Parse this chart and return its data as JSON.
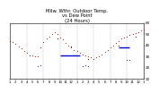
{
  "title": "Milw. Wthr. Outdoor Temp.\nvs Dew Point\n(24 Hours)",
  "title_fontsize": 3.8,
  "title_color": "#000000",
  "bg_color": "#ffffff",
  "xlim": [
    0,
    24
  ],
  "ylim": [
    10,
    60
  ],
  "ytick_fontsize": 3.0,
  "xtick_fontsize": 2.8,
  "grid_color": "#999999",
  "grid_style": "--",
  "temp_color": "#cc0000",
  "dew_color": "#0000cc",
  "black_color": "#000000",
  "temp_data": [
    [
      0.0,
      44
    ],
    [
      0.5,
      43
    ],
    [
      1.0,
      41
    ],
    [
      1.5,
      39
    ],
    [
      2.0,
      37
    ],
    [
      2.5,
      35
    ],
    [
      3.0,
      33
    ],
    [
      4.0,
      31
    ],
    [
      4.5,
      30
    ],
    [
      5.0,
      30
    ],
    [
      5.5,
      38
    ],
    [
      6.0,
      43
    ],
    [
      6.5,
      46
    ],
    [
      7.0,
      48
    ],
    [
      7.5,
      50
    ],
    [
      8.0,
      52
    ],
    [
      8.5,
      50
    ],
    [
      9.0,
      47
    ],
    [
      9.5,
      45
    ],
    [
      10.0,
      42
    ],
    [
      10.5,
      40
    ],
    [
      11.0,
      38
    ],
    [
      11.5,
      36
    ],
    [
      12.0,
      35
    ],
    [
      12.5,
      33
    ],
    [
      13.0,
      32
    ],
    [
      13.5,
      31
    ],
    [
      14.0,
      30
    ],
    [
      14.5,
      29
    ],
    [
      15.0,
      28
    ],
    [
      15.5,
      29
    ],
    [
      16.0,
      30
    ],
    [
      16.5,
      32
    ],
    [
      17.0,
      34
    ],
    [
      17.5,
      36
    ],
    [
      18.0,
      38
    ],
    [
      18.5,
      40
    ],
    [
      19.0,
      42
    ],
    [
      19.5,
      44
    ],
    [
      20.0,
      46
    ],
    [
      20.5,
      47
    ],
    [
      21.0,
      48
    ],
    [
      21.5,
      49
    ],
    [
      22.0,
      50
    ],
    [
      22.5,
      51
    ],
    [
      23.0,
      52
    ],
    [
      23.5,
      53
    ],
    [
      24.0,
      54
    ]
  ],
  "black_data": [
    [
      3.5,
      31
    ],
    [
      8.5,
      46
    ],
    [
      11.0,
      39
    ],
    [
      14.0,
      28
    ],
    [
      19.5,
      40
    ],
    [
      22.5,
      48
    ]
  ],
  "dew_dots": [
    [
      5.0,
      21
    ],
    [
      5.5,
      22
    ],
    [
      13.0,
      21
    ],
    [
      13.5,
      22
    ],
    [
      14.0,
      21
    ],
    [
      21.0,
      27
    ],
    [
      21.5,
      27
    ]
  ],
  "dew_line_segments": [
    [
      [
        9.0,
        12.5
      ],
      [
        31,
        31
      ]
    ],
    [
      [
        19.5,
        21.5
      ],
      [
        38,
        38
      ]
    ]
  ],
  "xticks": [
    0,
    1,
    2,
    3,
    4,
    5,
    6,
    7,
    8,
    9,
    10,
    11,
    12,
    13,
    14,
    15,
    16,
    17,
    18,
    19,
    20,
    21,
    22,
    23,
    24
  ],
  "xtick_labels": [
    "1",
    "2",
    "3",
    "4",
    "5",
    "6",
    "7",
    "8",
    "9",
    "10",
    "11",
    "12",
    "1",
    "2",
    "3",
    "4",
    "5",
    "6",
    "7",
    "8",
    "9",
    "10",
    "11",
    "12",
    "1"
  ],
  "yticks": [
    10,
    20,
    30,
    40,
    50,
    60
  ],
  "ytick_labels": [
    "10",
    "20",
    "30",
    "40",
    "50",
    "60"
  ],
  "vgrid_positions": [
    3,
    6,
    9,
    12,
    15,
    18,
    21,
    24
  ]
}
